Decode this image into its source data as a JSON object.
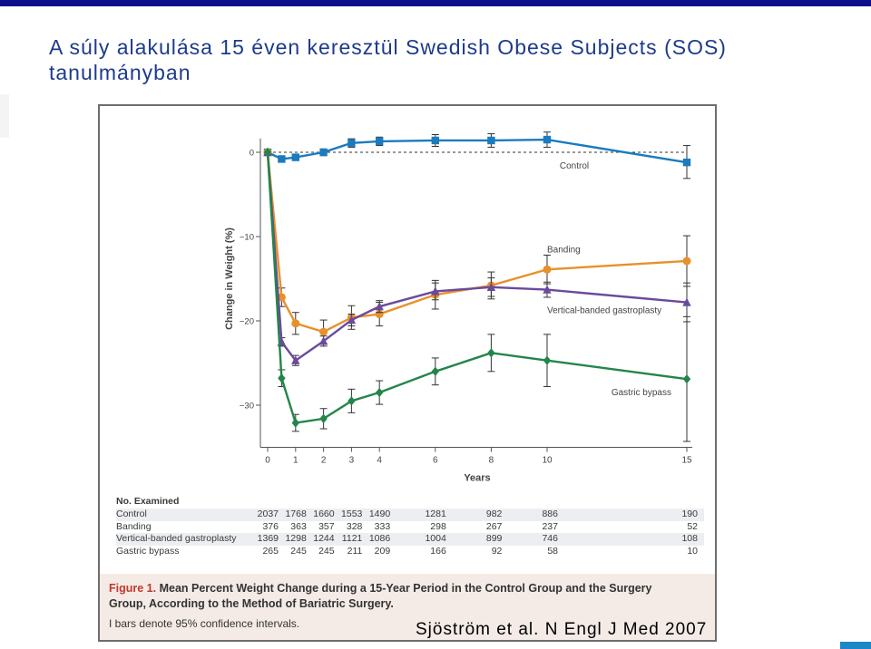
{
  "slide": {
    "title_line1": "A súly alakulása 15 éven keresztül Swedish Obese Subjects (SOS)",
    "title_line2": "tanulmányban",
    "citation": "Sjöström et al. N Engl J Med 2007"
  },
  "colors": {
    "control": "#1a7bbf",
    "banding": "#e8902a",
    "vbg": "#6a4a9c",
    "bypass": "#23854a",
    "title": "#1d3b8c"
  },
  "chart_data": {
    "type": "line",
    "ylabel": "Change in Weight (%)",
    "xlabel": "Years",
    "x": [
      0,
      0.5,
      1,
      2,
      3,
      4,
      6,
      8,
      10,
      15
    ],
    "x_ticks": [
      0,
      1,
      2,
      3,
      4,
      6,
      8,
      10,
      15
    ],
    "x_tick_labels": [
      "0",
      "1",
      "2",
      "3",
      "4",
      "6",
      "8",
      "10",
      "15"
    ],
    "y_ticks": [
      0,
      -10,
      -20,
      -30
    ],
    "y_tick_labels": [
      "0",
      "−10",
      "−20",
      "−30"
    ],
    "ylim": [
      -35,
      1
    ],
    "series": [
      {
        "name": "Control",
        "color": "#1a7bbf",
        "marker": "square",
        "x": [
          0,
          0.5,
          1,
          2,
          3,
          4,
          6,
          8,
          10,
          15
        ],
        "values": [
          0,
          -0.8,
          -0.6,
          0,
          1.1,
          1.3,
          1.4,
          1.4,
          1.5,
          -1.2
        ],
        "ci_low": [
          0,
          -1.1,
          -0.9,
          -0.4,
          0.6,
          0.8,
          0.7,
          0.6,
          0.6,
          -3.1
        ],
        "ci_high": [
          0,
          -0.5,
          -0.3,
          0.4,
          1.6,
          1.8,
          2.1,
          2.2,
          2.4,
          0.8
        ]
      },
      {
        "name": "Banding",
        "color": "#e8902a",
        "marker": "circle",
        "x": [
          0,
          0.5,
          1,
          2,
          3,
          4,
          6,
          8,
          10,
          15
        ],
        "values": [
          0,
          -17.2,
          -20.3,
          -21.3,
          -19.6,
          -19.2,
          -16.9,
          -15.8,
          -13.9,
          -12.9
        ],
        "ci_low": [
          0,
          -18.3,
          -21.6,
          -22.7,
          -21.0,
          -20.6,
          -18.6,
          -17.4,
          -15.6,
          -15.9
        ],
        "ci_high": [
          0,
          -16.1,
          -19.0,
          -19.9,
          -18.2,
          -17.8,
          -15.2,
          -14.2,
          -12.2,
          -9.9
        ]
      },
      {
        "name": "Vertical-banded gastroplasty",
        "color": "#6a4a9c",
        "marker": "triangle",
        "x": [
          0,
          0.5,
          1,
          2,
          3,
          4,
          6,
          8,
          10,
          15
        ],
        "values": [
          0,
          -22.5,
          -24.7,
          -22.4,
          -19.9,
          -18.3,
          -16.5,
          -16.0,
          -16.3,
          -17.8
        ],
        "ci_low": [
          0,
          -23.0,
          -25.3,
          -23.0,
          -20.6,
          -19.0,
          -17.5,
          -17.1,
          -17.2,
          -20.1
        ],
        "ci_high": [
          0,
          -22.0,
          -24.1,
          -21.8,
          -19.2,
          -17.6,
          -15.5,
          -14.9,
          -15.4,
          -15.5
        ]
      },
      {
        "name": "Gastric bypass",
        "color": "#23854a",
        "marker": "diamond",
        "x": [
          0,
          0.5,
          1,
          2,
          3,
          4,
          6,
          8,
          10,
          15
        ],
        "values": [
          0,
          -26.8,
          -32.1,
          -31.6,
          -29.5,
          -28.5,
          -26.0,
          -23.8,
          -24.7,
          -26.9
        ],
        "ci_low": [
          0,
          -27.8,
          -33.1,
          -32.8,
          -30.9,
          -29.9,
          -27.6,
          -26.0,
          -27.8,
          -34.3
        ],
        "ci_high": [
          0,
          -25.8,
          -31.1,
          -30.4,
          -28.1,
          -27.1,
          -24.4,
          -21.6,
          -21.6,
          -19.5
        ]
      }
    ]
  },
  "n_examined": {
    "header": "No. Examined",
    "years": [
      0,
      1,
      2,
      3,
      4,
      6,
      8,
      10,
      15
    ],
    "rows": [
      {
        "label": "Control",
        "counts": [
          "2037",
          "1768",
          "1660",
          "1553",
          "1490",
          "1281",
          "982",
          "886",
          "190"
        ]
      },
      {
        "label": "Banding",
        "counts": [
          "376",
          "363",
          "357",
          "328",
          "333",
          "298",
          "267",
          "237",
          "52"
        ]
      },
      {
        "label": "Vertical-banded gastroplasty",
        "counts": [
          "1369",
          "1298",
          "1244",
          "1121",
          "1086",
          "1004",
          "899",
          "746",
          "108"
        ]
      },
      {
        "label": "Gastric bypass",
        "counts": [
          "265",
          "245",
          "245",
          "211",
          "209",
          "166",
          "92",
          "58",
          "10"
        ]
      }
    ]
  },
  "caption": {
    "figure_label": "Figure 1.",
    "title": "Mean Percent Weight Change during a 15-Year Period in the Control Group and the Surgery Group, According to the Method of Bariatric Surgery.",
    "note": "I bars denote 95% confidence intervals."
  }
}
